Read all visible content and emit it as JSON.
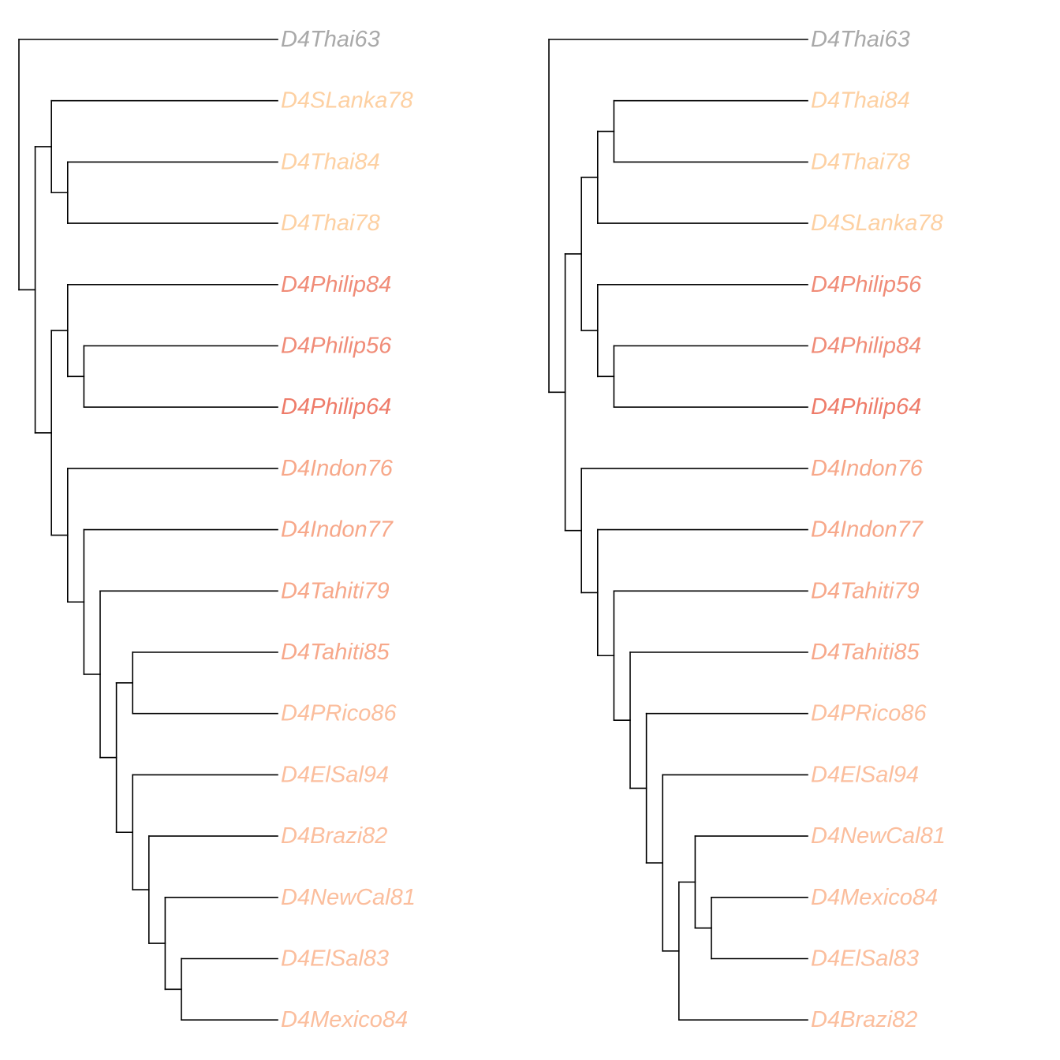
{
  "colors": {
    "branch": "#000000",
    "outgroup": "#A9A9A9",
    "thai_slanka": "#FDD0A2",
    "philip": "#F08C78",
    "philip64": "#EE7C6A",
    "indon_tahiti": "#F7A88A",
    "pacific": "#FBBE9D"
  },
  "trees": [
    {
      "name": "left-tree",
      "tips": [
        {
          "label": "D4Thai63",
          "color": "#A9A9A9"
        },
        {
          "label": "D4SLanka78",
          "color": "#FDD0A2"
        },
        {
          "label": "D4Thai84",
          "color": "#FDD0A2"
        },
        {
          "label": "D4Thai78",
          "color": "#FDD0A2"
        },
        {
          "label": "D4Philip84",
          "color": "#F08C78"
        },
        {
          "label": "D4Philip56",
          "color": "#F08C78"
        },
        {
          "label": "D4Philip64",
          "color": "#EE7C6A"
        },
        {
          "label": "D4Indon76",
          "color": "#F7A88A"
        },
        {
          "label": "D4Indon77",
          "color": "#F7A88A"
        },
        {
          "label": "D4Tahiti79",
          "color": "#F7A88A"
        },
        {
          "label": "D4Tahiti85",
          "color": "#F7A88A"
        },
        {
          "label": "D4PRico86",
          "color": "#FBBE9D"
        },
        {
          "label": "D4ElSal94",
          "color": "#FBBE9D"
        },
        {
          "label": "D4Brazi82",
          "color": "#FBBE9D"
        },
        {
          "label": "D4NewCal81",
          "color": "#FBBE9D"
        },
        {
          "label": "D4ElSal83",
          "color": "#FBBE9D"
        },
        {
          "label": "D4Mexico84",
          "color": "#FBBE9D"
        }
      ],
      "topology": [
        0,
        [
          [
            1,
            [
              2,
              3
            ]
          ],
          [
            [
              4,
              [
                5,
                6
              ]
            ],
            [
              7,
              [
                8,
                [
                  9,
                  [
                    [
                      10,
                      11
                    ],
                    [
                      12,
                      [
                        13,
                        [
                          14,
                          [
                            15,
                            16
                          ]
                        ]
                      ]
                    ]
                  ]
                ]
              ]
            ]
          ]
        ]
      ]
    },
    {
      "name": "right-tree",
      "tips": [
        {
          "label": "D4Thai63",
          "color": "#A9A9A9"
        },
        {
          "label": "D4Thai84",
          "color": "#FDD0A2"
        },
        {
          "label": "D4Thai78",
          "color": "#FDD0A2"
        },
        {
          "label": "D4SLanka78",
          "color": "#FDD0A2"
        },
        {
          "label": "D4Philip56",
          "color": "#F08C78"
        },
        {
          "label": "D4Philip84",
          "color": "#F08C78"
        },
        {
          "label": "D4Philip64",
          "color": "#EE7C6A"
        },
        {
          "label": "D4Indon76",
          "color": "#F7A88A"
        },
        {
          "label": "D4Indon77",
          "color": "#F7A88A"
        },
        {
          "label": "D4Tahiti79",
          "color": "#F7A88A"
        },
        {
          "label": "D4Tahiti85",
          "color": "#F7A88A"
        },
        {
          "label": "D4PRico86",
          "color": "#FBBE9D"
        },
        {
          "label": "D4ElSal94",
          "color": "#FBBE9D"
        },
        {
          "label": "D4NewCal81",
          "color": "#FBBE9D"
        },
        {
          "label": "D4Mexico84",
          "color": "#FBBE9D"
        },
        {
          "label": "D4ElSal83",
          "color": "#FBBE9D"
        },
        {
          "label": "D4Brazi82",
          "color": "#FBBE9D"
        }
      ],
      "topology": [
        0,
        [
          [
            [
              [
                1,
                2
              ],
              3
            ],
            [
              4,
              [
                5,
                6
              ]
            ]
          ],
          [
            7,
            [
              8,
              [
                9,
                [
                  10,
                  [
                    11,
                    [
                      12,
                      [
                        [
                          13,
                          [
                            14,
                            15
                          ]
                        ],
                        16
                      ]
                    ]
                  ]
                ]
              ]
            ]
          ]
        ]
      ]
    }
  ]
}
